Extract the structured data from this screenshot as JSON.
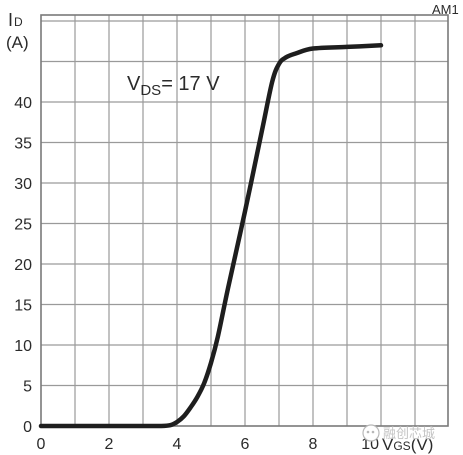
{
  "chart_data": {
    "type": "line",
    "figure_id": "AM1",
    "ylabel_main": "I",
    "ylabel_sub": "D",
    "yunit": "(A)",
    "xlabel_prefix": "V",
    "xlabel_sub": "GS",
    "xunit": "(V)",
    "annotation_main": "V",
    "annotation_sub": "DS",
    "annotation_value": "= 17 V",
    "xlim": [
      0,
      10
    ],
    "ylim": [
      0,
      45
    ],
    "x_ticks": [
      "0",
      "2",
      "4",
      "6",
      "8",
      "10"
    ],
    "y_ticks": [
      "0",
      "5",
      "10",
      "15",
      "20",
      "25",
      "30",
      "35",
      "40"
    ],
    "grid": true,
    "series": [
      {
        "x": [
          0,
          1,
          2,
          3,
          3.5,
          3.8,
          4.0,
          4.2,
          4.4,
          4.6,
          4.8,
          5.0,
          5.2,
          5.5,
          6.0,
          6.5,
          6.8,
          7.0,
          7.2,
          7.5,
          8.0,
          9.0,
          10.0
        ],
        "y": [
          0,
          0,
          0,
          0,
          0,
          0.1,
          0.5,
          1.2,
          2.3,
          3.6,
          5.3,
          7.8,
          11.0,
          17.0,
          26.5,
          36.5,
          42.5,
          44.7,
          45.5,
          46.0,
          46.6,
          46.8,
          47.0
        ]
      }
    ]
  },
  "watermark": {
    "text": "融创芯城"
  }
}
